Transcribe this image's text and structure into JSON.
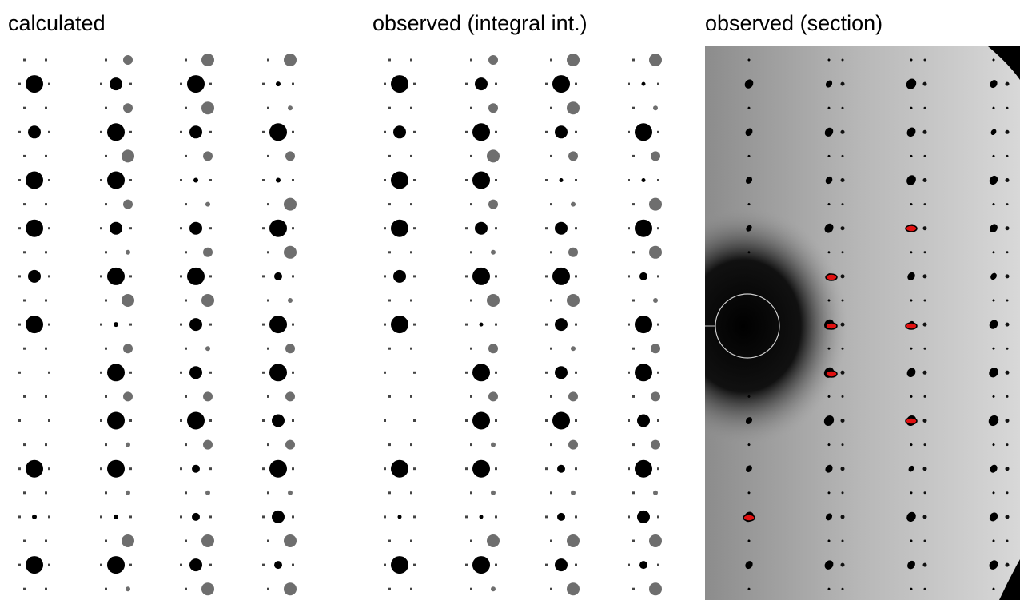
{
  "panels": [
    {
      "title": "calculated"
    },
    {
      "title": "observed (integral int.)"
    },
    {
      "title": "observed (section)"
    }
  ]
}
